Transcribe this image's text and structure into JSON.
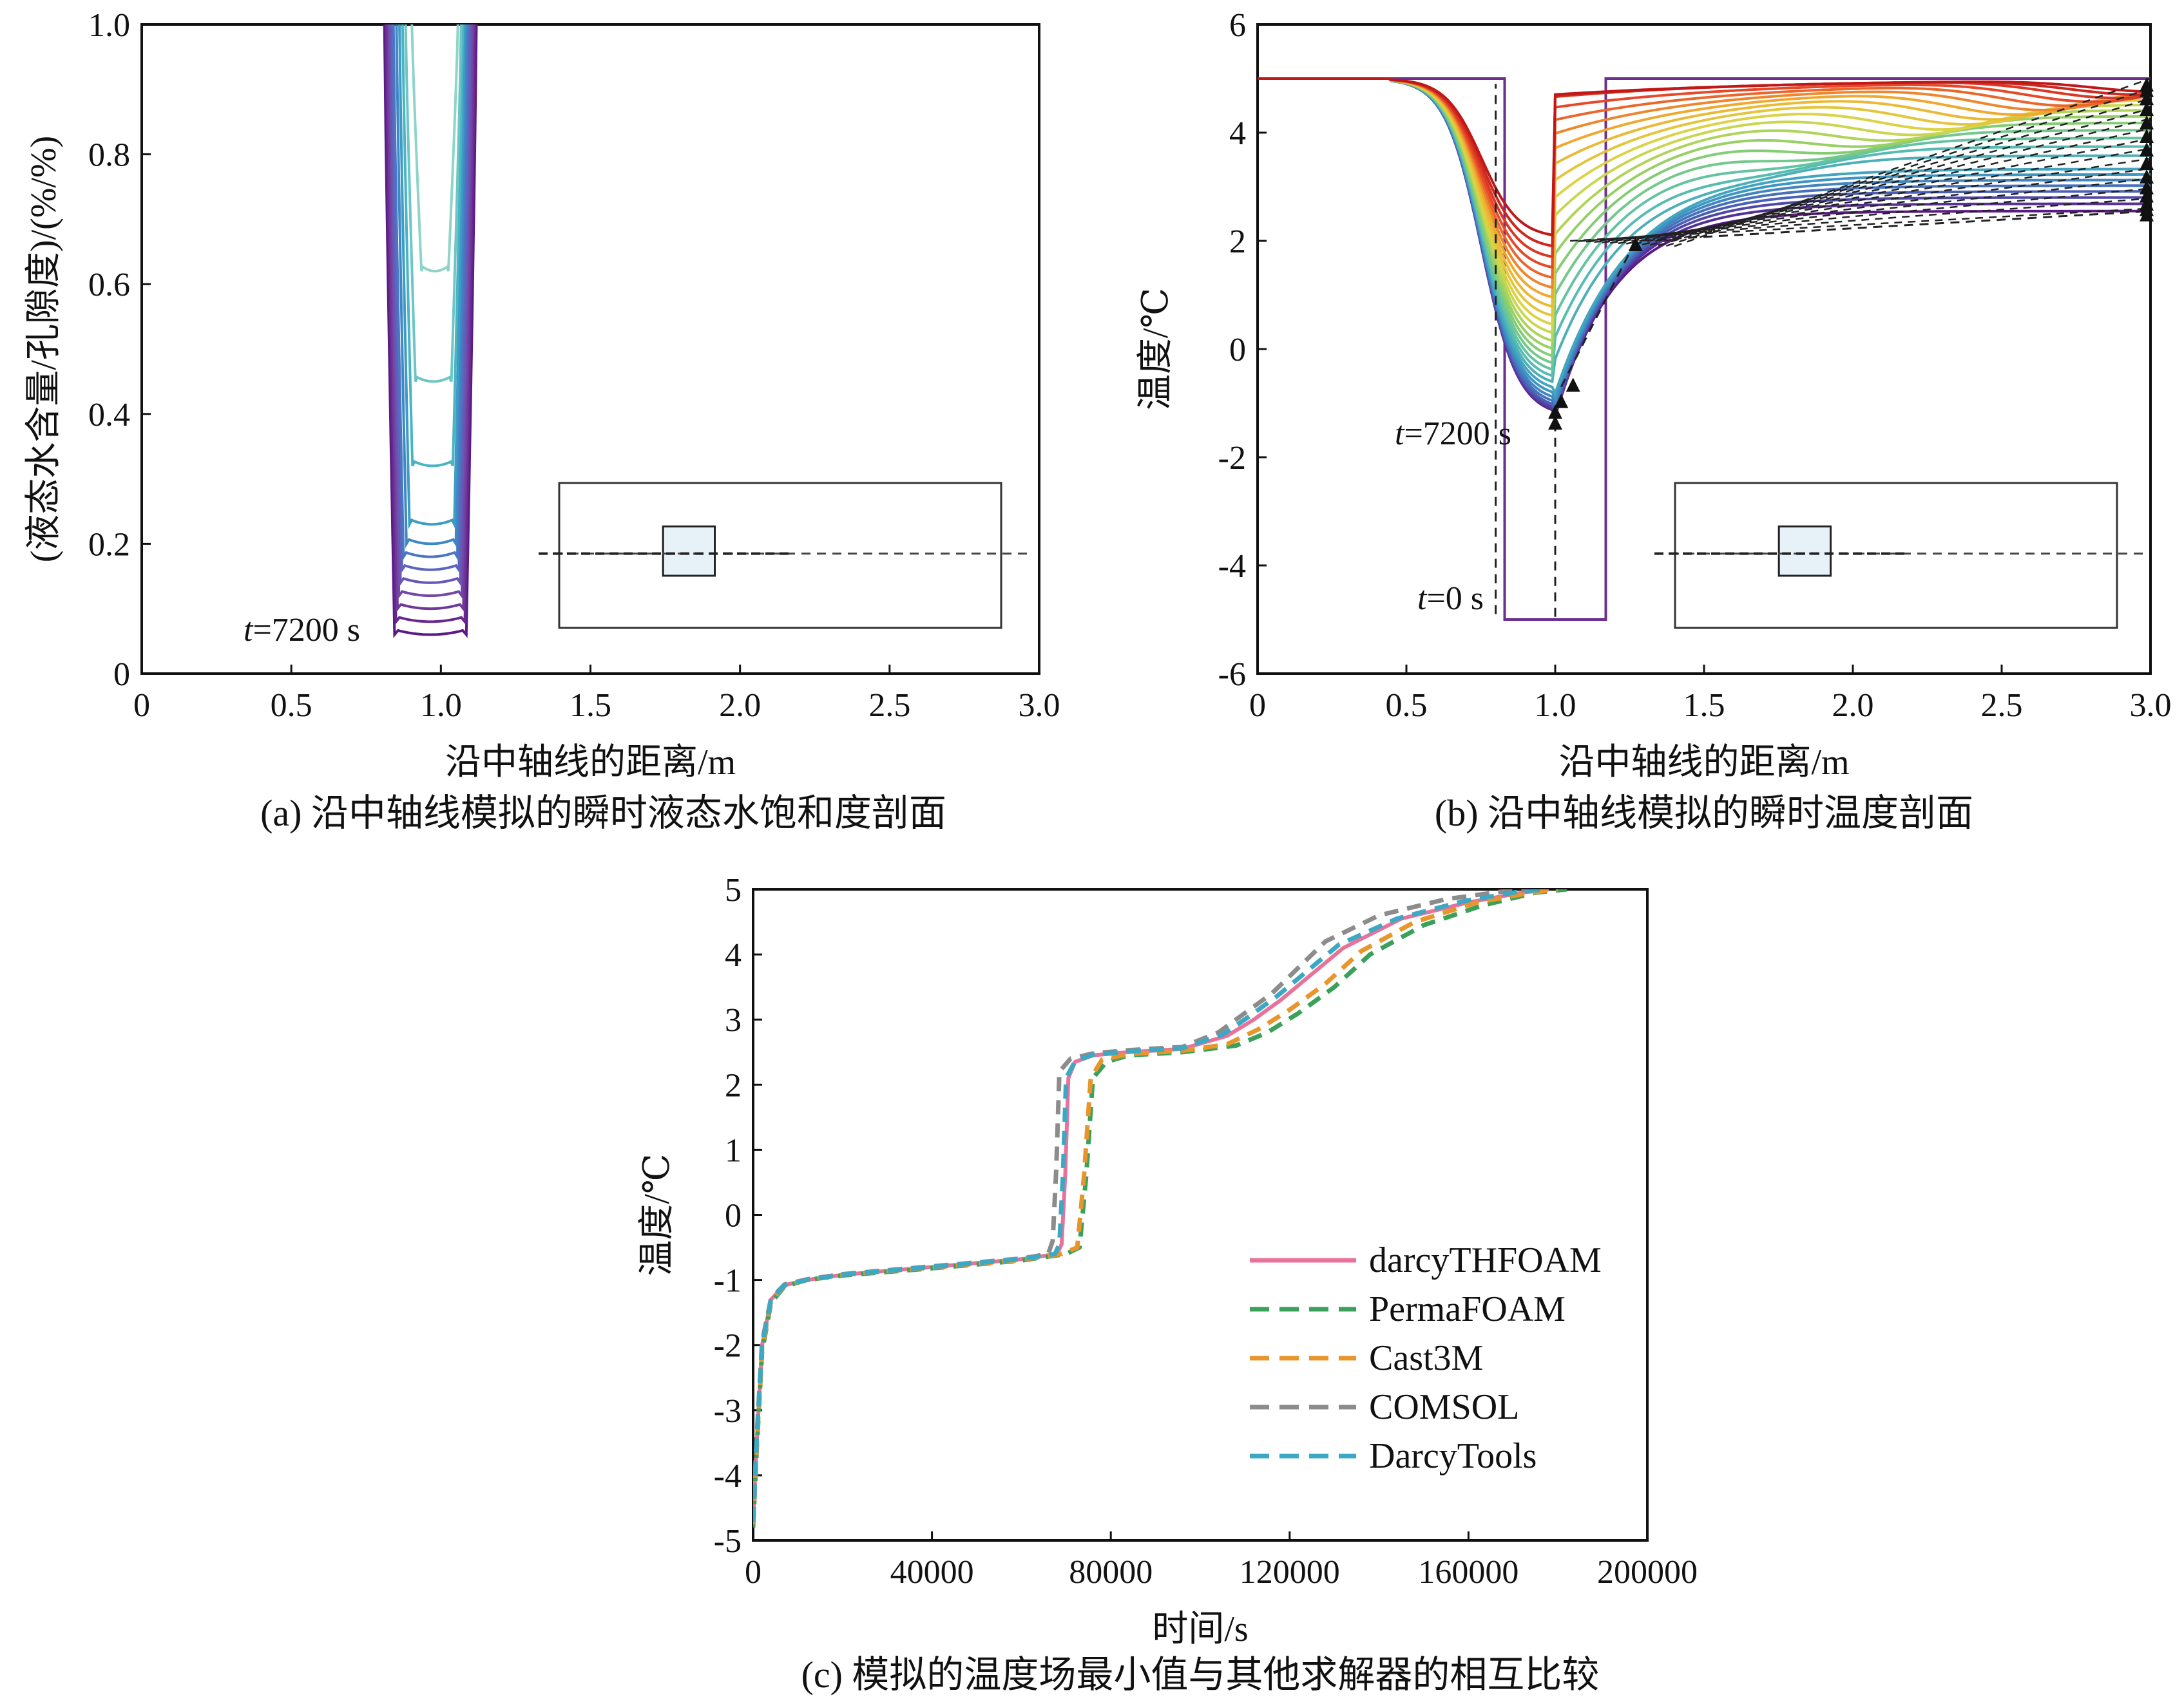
{
  "chart_data": [
    {
      "id": "a",
      "type": "line",
      "title": "",
      "caption": "(a) 沿中轴线模拟的瞬时液态水饱和度剖面",
      "xlabel": "沿中轴线的距离/m",
      "ylabel": "(液态水含量/孔隙度)/(%/%)",
      "xlim": [
        0,
        3.0
      ],
      "ylim": [
        0,
        1.0
      ],
      "xticks": [
        0,
        0.5,
        1.0,
        1.5,
        2.0,
        2.5,
        3.0
      ],
      "xtick_labels": [
        "0",
        "0.5",
        "1.0",
        "1.5",
        "2.0",
        "2.5",
        "3.0"
      ],
      "yticks": [
        0,
        0.2,
        0.4,
        0.6,
        0.8,
        1.0
      ],
      "ytick_labels": [
        "0",
        "0.2",
        "0.4",
        "0.6",
        "0.8",
        "1.0"
      ],
      "grid": false,
      "annotations": [
        {
          "text": "t=7200 s",
          "italic_prefix": "t",
          "rest": "=7200 s",
          "x": 0.5,
          "y": 0.06
        }
      ],
      "series_profiles": {
        "description_of_curves": "family of U-shaped saturation profiles; minimum saturation per curve",
        "left_edge": [
          0.81,
          0.815,
          0.82,
          0.825,
          0.83,
          0.835,
          0.84,
          0.85,
          0.86,
          0.87,
          0.88,
          0.9
        ],
        "right_edge": [
          1.12,
          1.115,
          1.11,
          1.105,
          1.1,
          1.095,
          1.09,
          1.085,
          1.08,
          1.075,
          1.07,
          1.06
        ],
        "minimum": [
          0.06,
          0.08,
          0.1,
          0.12,
          0.14,
          0.16,
          0.18,
          0.2,
          0.23,
          0.32,
          0.45,
          0.62
        ],
        "colors": [
          "#5a1a86",
          "#662a8e",
          "#6e3a9a",
          "#7446a8",
          "#6a56b4",
          "#5a66bc",
          "#4a76c2",
          "#3e88c6",
          "#3c9cc4",
          "#4ab4c4",
          "#6cc6c6",
          "#8fd4c8"
        ]
      },
      "inset": {
        "dashed_axis": true,
        "box": true,
        "small_square": true
      }
    },
    {
      "id": "b",
      "type": "line",
      "title": "",
      "caption": "(b) 沿中轴线模拟的瞬时温度剖面",
      "xlabel": "沿中轴线的距离/m",
      "ylabel": "温度/℃",
      "xlim": [
        0,
        3.0
      ],
      "ylim": [
        -6,
        6
      ],
      "xticks": [
        0,
        0.5,
        1.0,
        1.5,
        2.0,
        2.5,
        3.0
      ],
      "xtick_labels": [
        "0",
        "0.5",
        "1.0",
        "1.5",
        "2.0",
        "2.5",
        "3.0"
      ],
      "yticks": [
        -6,
        -4,
        -2,
        0,
        2,
        4,
        6
      ],
      "ytick_labels": [
        "-6",
        "-4",
        "-2",
        "0",
        "2",
        "4",
        "6"
      ],
      "grid": false,
      "annotations": [
        {
          "text": "t=7200 s",
          "italic_prefix": "t",
          "rest": "=7200 s",
          "x": 0.46,
          "y": -1.5
        },
        {
          "text": "t=0 s",
          "italic_prefix": "t",
          "rest": "=0 s",
          "x": 0.55,
          "y": -4.6
        }
      ],
      "initial_profile": {
        "x": [
          0,
          0.83,
          0.83,
          1.17,
          1.17,
          3.0
        ],
        "y": [
          5,
          5,
          -5,
          -5,
          5,
          5
        ],
        "color": "#6b2f8c"
      },
      "profiles": {
        "description_of_curves": "temperature profiles over time, purple (early) to red (late)",
        "min_temperature": [
          -1.2,
          -1.1,
          -1.0,
          -0.95,
          -0.9,
          -0.85,
          -0.8,
          -0.7,
          -0.5,
          0.5,
          2.0
        ],
        "right_boundary_values": [
          2.55,
          2.65,
          2.75,
          2.9,
          3.05,
          3.25,
          3.5,
          3.75,
          4.0,
          4.25,
          4.5,
          4.7,
          4.85,
          4.95
        ]
      },
      "inset": {
        "dashed_axis": true,
        "box": true,
        "small_square": true
      }
    },
    {
      "id": "c",
      "type": "line",
      "title": "",
      "caption": "(c) 模拟的温度场最小值与其他求解器的相互比较",
      "xlabel": "时间/s",
      "ylabel": "温度/℃",
      "xlim": [
        0,
        200000
      ],
      "ylim": [
        -5,
        5
      ],
      "xticks": [
        0,
        40000,
        80000,
        120000,
        160000,
        200000
      ],
      "xtick_labels": [
        "0",
        "40000",
        "80000",
        "120000",
        "160000",
        "200000"
      ],
      "yticks": [
        -5,
        -4,
        -3,
        -2,
        -1,
        0,
        1,
        2,
        3,
        4,
        5
      ],
      "ytick_labels": [
        "-5",
        "-4",
        "-3",
        "-2",
        "-1",
        "0",
        "1",
        "2",
        "3",
        "4",
        "5"
      ],
      "grid": false,
      "legend_position": "lower-right",
      "series": [
        {
          "name": "darcyTHFOAM",
          "color": "#e8739a",
          "dash": "solid",
          "x": [
            0,
            800,
            2000,
            4000,
            7000,
            12000,
            20000,
            40000,
            60000,
            68000,
            69000,
            69800,
            70500,
            72000,
            76000,
            84000,
            96000,
            106000,
            112000,
            118000,
            125000,
            132000,
            145000,
            160000,
            172000,
            178000
          ],
          "y": [
            -4.7,
            -3.5,
            -2.0,
            -1.3,
            -1.08,
            -1.0,
            -0.92,
            -0.8,
            -0.68,
            -0.6,
            -0.45,
            0.6,
            2.1,
            2.35,
            2.45,
            2.5,
            2.55,
            2.75,
            3.0,
            3.3,
            3.7,
            4.1,
            4.55,
            4.8,
            4.95,
            5.0
          ]
        },
        {
          "name": "PermaFOAM",
          "color": "#3aa05a",
          "dash": "dashed",
          "x": [
            0,
            800,
            2000,
            4000,
            7000,
            12000,
            20000,
            40000,
            60000,
            70000,
            73000,
            74500,
            76000,
            79000,
            84000,
            96000,
            108000,
            115000,
            122000,
            130000,
            138000,
            150000,
            163000,
            175000,
            182000
          ],
          "y": [
            -4.8,
            -3.6,
            -2.1,
            -1.35,
            -1.1,
            -1.0,
            -0.93,
            -0.82,
            -0.7,
            -0.6,
            -0.5,
            0.6,
            2.1,
            2.35,
            2.45,
            2.5,
            2.6,
            2.8,
            3.1,
            3.5,
            4.0,
            4.45,
            4.75,
            4.95,
            5.0
          ]
        },
        {
          "name": "Cast3M",
          "color": "#e8962c",
          "dash": "dashed",
          "x": [
            0,
            800,
            2000,
            4000,
            7000,
            12000,
            20000,
            40000,
            60000,
            69000,
            72500,
            74000,
            75500,
            78000,
            84000,
            96000,
            106000,
            113000,
            120000,
            128000,
            136000,
            148000,
            162000,
            174000,
            180000
          ],
          "y": [
            -4.75,
            -3.55,
            -2.05,
            -1.32,
            -1.09,
            -1.0,
            -0.92,
            -0.81,
            -0.69,
            -0.6,
            -0.5,
            0.6,
            2.1,
            2.38,
            2.47,
            2.52,
            2.62,
            2.85,
            3.15,
            3.55,
            4.05,
            4.5,
            4.8,
            4.95,
            5.0
          ]
        },
        {
          "name": "COMSOL",
          "color": "#8c8c8c",
          "dash": "dashed",
          "x": [
            0,
            800,
            2000,
            4000,
            7000,
            12000,
            20000,
            40000,
            60000,
            66000,
            67000,
            67800,
            68500,
            71000,
            76000,
            84000,
            96000,
            104000,
            110000,
            116000,
            122000,
            128000,
            140000,
            155000,
            168000,
            175000
          ],
          "y": [
            -4.7,
            -3.4,
            -1.95,
            -1.28,
            -1.07,
            -0.99,
            -0.91,
            -0.79,
            -0.67,
            -0.6,
            -0.4,
            0.7,
            2.2,
            2.4,
            2.48,
            2.53,
            2.58,
            2.8,
            3.1,
            3.4,
            3.8,
            4.2,
            4.6,
            4.85,
            4.97,
            5.0
          ]
        },
        {
          "name": "DarcyTools",
          "color": "#3ca8c4",
          "dash": "dashed",
          "x": [
            0,
            800,
            2000,
            4000,
            7000,
            12000,
            20000,
            40000,
            60000,
            67500,
            68500,
            69300,
            70000,
            72000,
            76000,
            84000,
            96000,
            105000,
            111000,
            117000,
            124000,
            131000,
            144000,
            159000,
            171000,
            177000
          ],
          "y": [
            -4.72,
            -3.45,
            -2.0,
            -1.3,
            -1.08,
            -1.0,
            -0.92,
            -0.8,
            -0.68,
            -0.6,
            -0.45,
            0.6,
            2.1,
            2.36,
            2.46,
            2.51,
            2.56,
            2.77,
            3.05,
            3.35,
            3.75,
            4.15,
            4.55,
            4.82,
            4.96,
            5.0
          ]
        }
      ]
    }
  ]
}
